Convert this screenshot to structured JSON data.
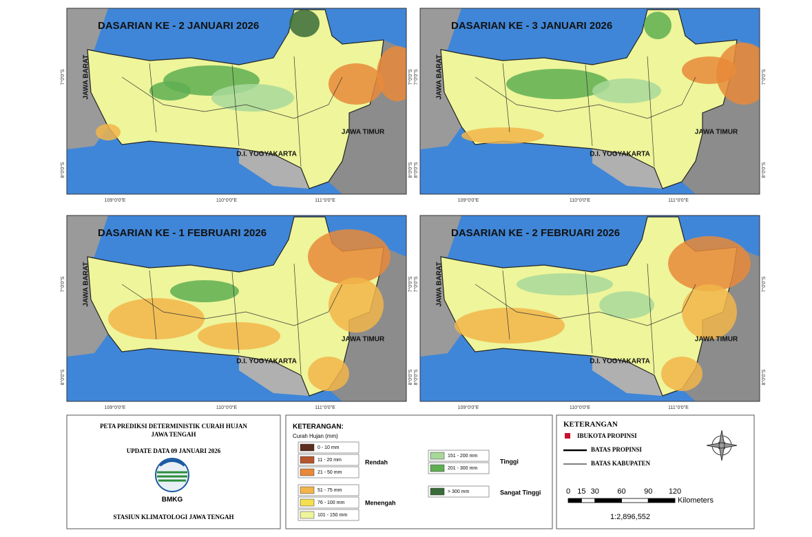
{
  "panels": [
    {
      "title": "DASARIAN KE - 2 JANUARI 2026"
    },
    {
      "title": "DASARIAN KE - 3  JANUARI 2026"
    },
    {
      "title": "DASARIAN KE - 1 FEBRUARI 2026"
    },
    {
      "title": "DASARIAN KE - 2 FEBRUARI 2026"
    }
  ],
  "map_labels": {
    "west": "JAWA BARAT",
    "east": "JAWA TIMUR",
    "south": "D.I. YOGYAKARTA"
  },
  "lon_ticks": [
    "109°0'0\"E",
    "110°0'0\"E",
    "111°0'0\"E"
  ],
  "lat_ticks": [
    "7°0'0\"S",
    "8°0'0\"S"
  ],
  "info": {
    "title": [
      "PETA PREDIKSI DETERMINISTIK CURAH HUJAN",
      "JAWA TENGAH"
    ],
    "update": "UPDATE DATA 09 JANUARI 2026",
    "logo": "BMKG",
    "station": "STASIUN KLIMATOLOGI JAWA TENGAH"
  },
  "legend": {
    "title": "KETERANGAN:",
    "subtitle": "Curah Hujan (mm)",
    "classes": [
      {
        "label": "0 - 10 mm",
        "color": "#5c2c1e"
      },
      {
        "label": "11 - 20 mm",
        "color": "#b5562f"
      },
      {
        "label": "21 - 50 mm",
        "color": "#e8893a"
      },
      {
        "label": "51 - 75 mm",
        "color": "#f2b54a"
      },
      {
        "label": "76 - 100 mm",
        "color": "#f4e04e"
      },
      {
        "label": "101 - 150 mm",
        "color": "#eef59a"
      },
      {
        "label": "151 - 200 mm",
        "color": "#a8d89a"
      },
      {
        "label": "201 - 300 mm",
        "color": "#5fae52"
      },
      {
        "label": "> 300 mm",
        "color": "#3a6b3a"
      }
    ],
    "groups": [
      "Rendah",
      "Menengah",
      "Tinggi",
      "Sangat Tinggi"
    ]
  },
  "key": {
    "title": "KETERANGAN",
    "items": [
      "IBUKOTA PROPINSI",
      "BATAS PROPINSI",
      "BATAS KABUPATEN"
    ]
  },
  "scale": {
    "ticks": [
      0,
      15,
      30,
      60,
      90,
      120
    ],
    "unit": "Kilometers",
    "ratio": "1:2,896,552"
  }
}
